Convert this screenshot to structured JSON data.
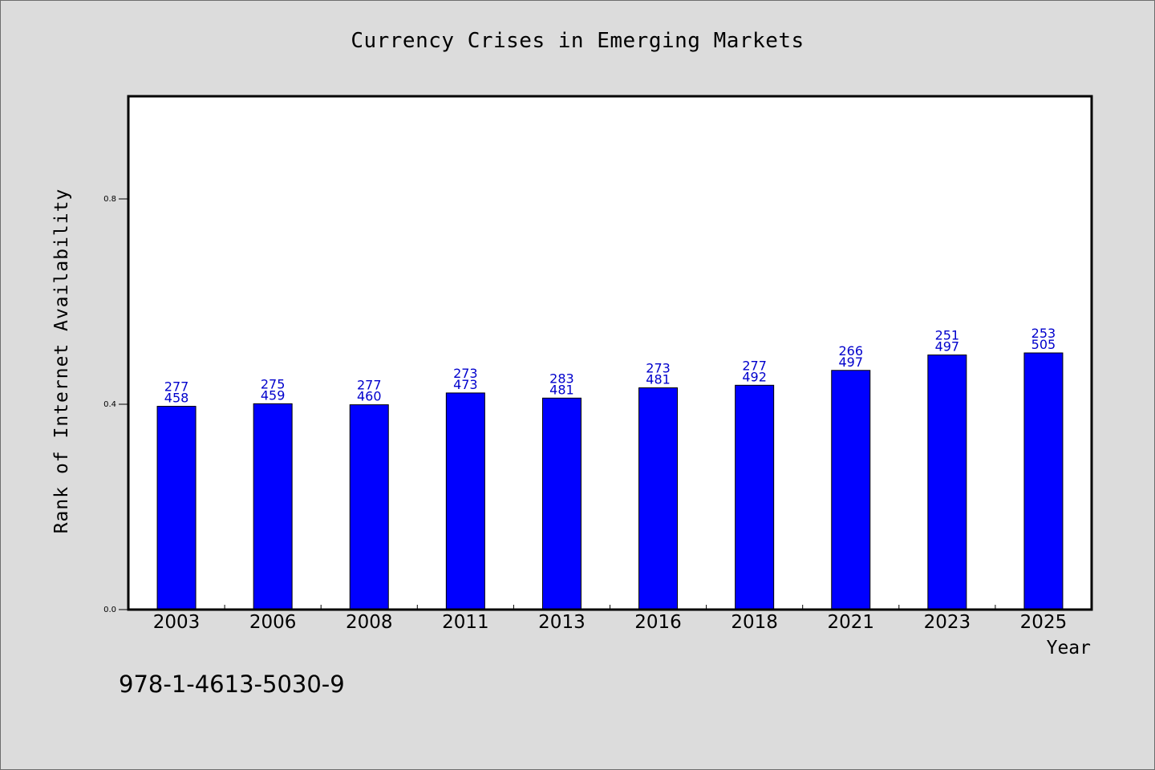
{
  "chart_data": {
    "type": "bar",
    "title": "Currency Crises in Emerging Markets",
    "xlabel": "Year",
    "ylabel": "Rank of Internet Availability",
    "categories": [
      "2003",
      "2006",
      "2008",
      "2011",
      "2013",
      "2016",
      "2018",
      "2021",
      "2023",
      "2025"
    ],
    "values": [
      0.396,
      0.401,
      0.399,
      0.422,
      0.412,
      0.432,
      0.437,
      0.466,
      0.496,
      0.5
    ],
    "labels_top": [
      "277",
      "275",
      "277",
      "273",
      "283",
      "273",
      "277",
      "266",
      "251",
      "253"
    ],
    "labels_bottom": [
      "458",
      "459",
      "460",
      "473",
      "481",
      "481",
      "492",
      "497",
      "497",
      "505"
    ],
    "ylim": [
      0,
      1.0
    ],
    "yticks": [
      0.0,
      0.4,
      0.8
    ],
    "ytick_labels": [
      "0.0",
      "0.4",
      "0.8"
    ],
    "grid": false,
    "legend": "none",
    "bar_color": "#0000ff",
    "data_label_color": "#0000cc"
  },
  "footnote": "978-1-4613-5030-9"
}
